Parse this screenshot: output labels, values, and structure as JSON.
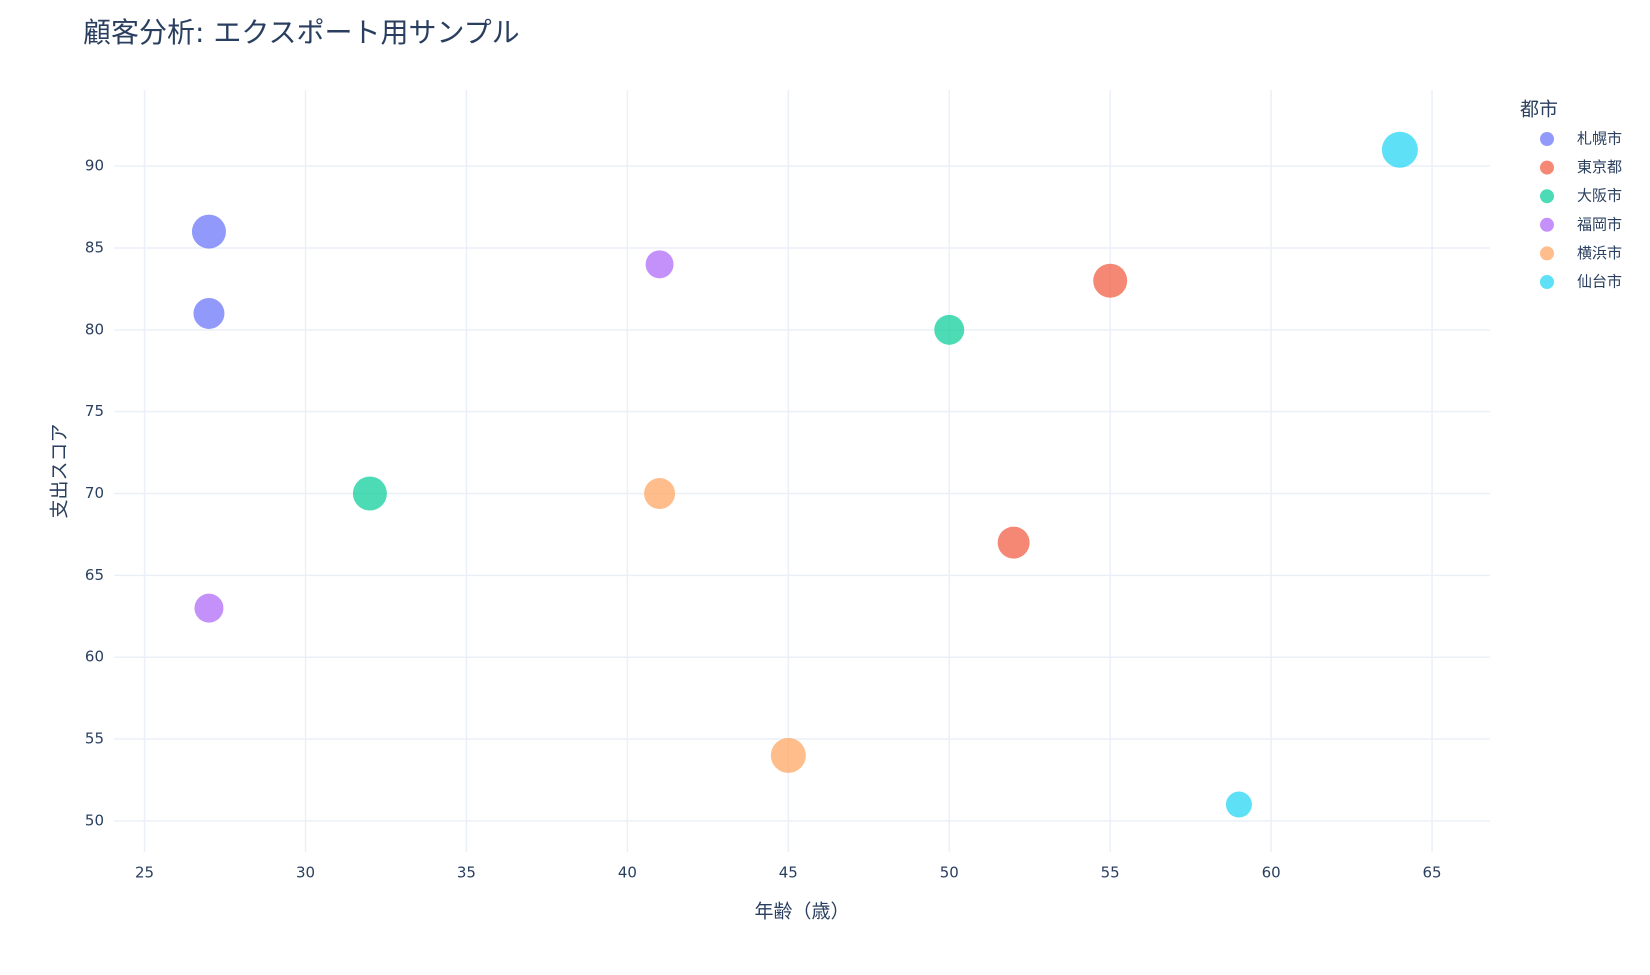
{
  "chart_data": {
    "type": "scatter",
    "title": "顧客分析: エクスポート用サンプル",
    "x_label": "年齢（歳）",
    "y_label": "支出スコア",
    "legend_title": "都市",
    "legend": "right",
    "grid": true,
    "xlim": [
      24.05,
      66.8
    ],
    "ylim": [
      48.1,
      94.65
    ],
    "xticks": [
      25,
      30,
      35,
      40,
      45,
      50,
      55,
      60,
      65
    ],
    "yticks": [
      50,
      55,
      60,
      65,
      70,
      75,
      80,
      85,
      90
    ],
    "opacity": 0.7,
    "series": [
      {
        "name": "札幌市",
        "color": "#636efa",
        "x": [
          27,
          27
        ],
        "values": [
          86,
          81
        ],
        "sizes": [
          34,
          31
        ]
      },
      {
        "name": "東京都",
        "color": "#EF553B",
        "x": [
          55,
          52
        ],
        "values": [
          83,
          67
        ],
        "sizes": [
          34,
          32
        ]
      },
      {
        "name": "大阪市",
        "color": "#00cc96",
        "x": [
          50,
          32
        ],
        "values": [
          80,
          70
        ],
        "sizes": [
          30,
          34
        ]
      },
      {
        "name": "福岡市",
        "color": "#ab63fa",
        "x": [
          41,
          27
        ],
        "values": [
          84,
          63
        ],
        "sizes": [
          28,
          29
        ]
      },
      {
        "name": "横浜市",
        "color": "#FFA15A",
        "x": [
          41,
          45
        ],
        "values": [
          70,
          54
        ],
        "sizes": [
          31,
          35
        ]
      },
      {
        "name": "仙台市",
        "color": "#19d3f3",
        "x": [
          64,
          59
        ],
        "values": [
          91,
          51
        ],
        "sizes": [
          36,
          26
        ]
      }
    ]
  }
}
